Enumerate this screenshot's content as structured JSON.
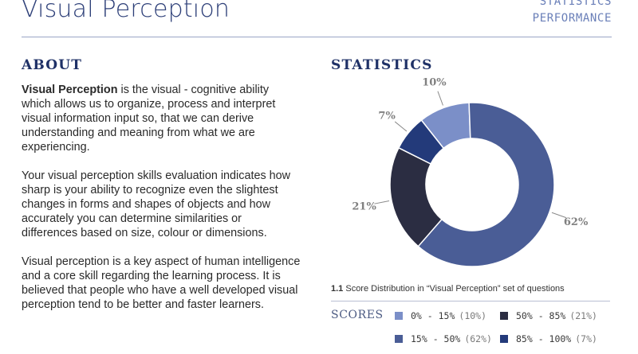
{
  "header": {
    "title": "Visual Perception",
    "nav": [
      "STATISTICS",
      "PERFORMANCE"
    ]
  },
  "about": {
    "heading": "ABOUT",
    "p1_bold": "Visual Perception",
    "p1_rest": " is the visual - cognitive ability which allows us to organize, process and interpret visual information input so, that we can derive understanding and meaning from what we are experiencing.",
    "p2": "Your visual perception skills evaluation indicates how sharp is your ability to recognize even the slightest changes in forms and shapes of objects and how accurately you can determine similarities or differences based on size, colour or dimensions.",
    "p3": "Visual perception is a key aspect of human intelligence and a core skill regarding the learning process. It is believed that people who have a well developed visual perception tend to be better and faster learners."
  },
  "statistics": {
    "heading": "STATISTICS",
    "caption_num": "1.1",
    "caption_text": " Score Distribution in “Visual Perception” set of questions",
    "scores_label": "SCORES",
    "legend": [
      {
        "range": "0% - 15%",
        "pct": "(10%)",
        "color": "#7b8fc8"
      },
      {
        "range": "50% - 85%",
        "pct": "(21%)",
        "color": "#2b2d42"
      },
      {
        "range": "15% - 50%",
        "pct": "(62%)",
        "color": "#4a5d96"
      },
      {
        "range": "85% - 100%",
        "pct": "(7%)",
        "color": "#233a7a"
      }
    ]
  },
  "chart_data": {
    "type": "pie",
    "donut": true,
    "categories": [
      "0% - 15%",
      "15% - 50%",
      "50% - 85%",
      "85% - 100%"
    ],
    "values": [
      10,
      62,
      21,
      7
    ],
    "labels": [
      "10%",
      "62%",
      "21%",
      "7%"
    ],
    "colors": [
      "#7b8fc8",
      "#4a5d96",
      "#2b2d42",
      "#233a7a"
    ],
    "label_color": "#808080"
  }
}
